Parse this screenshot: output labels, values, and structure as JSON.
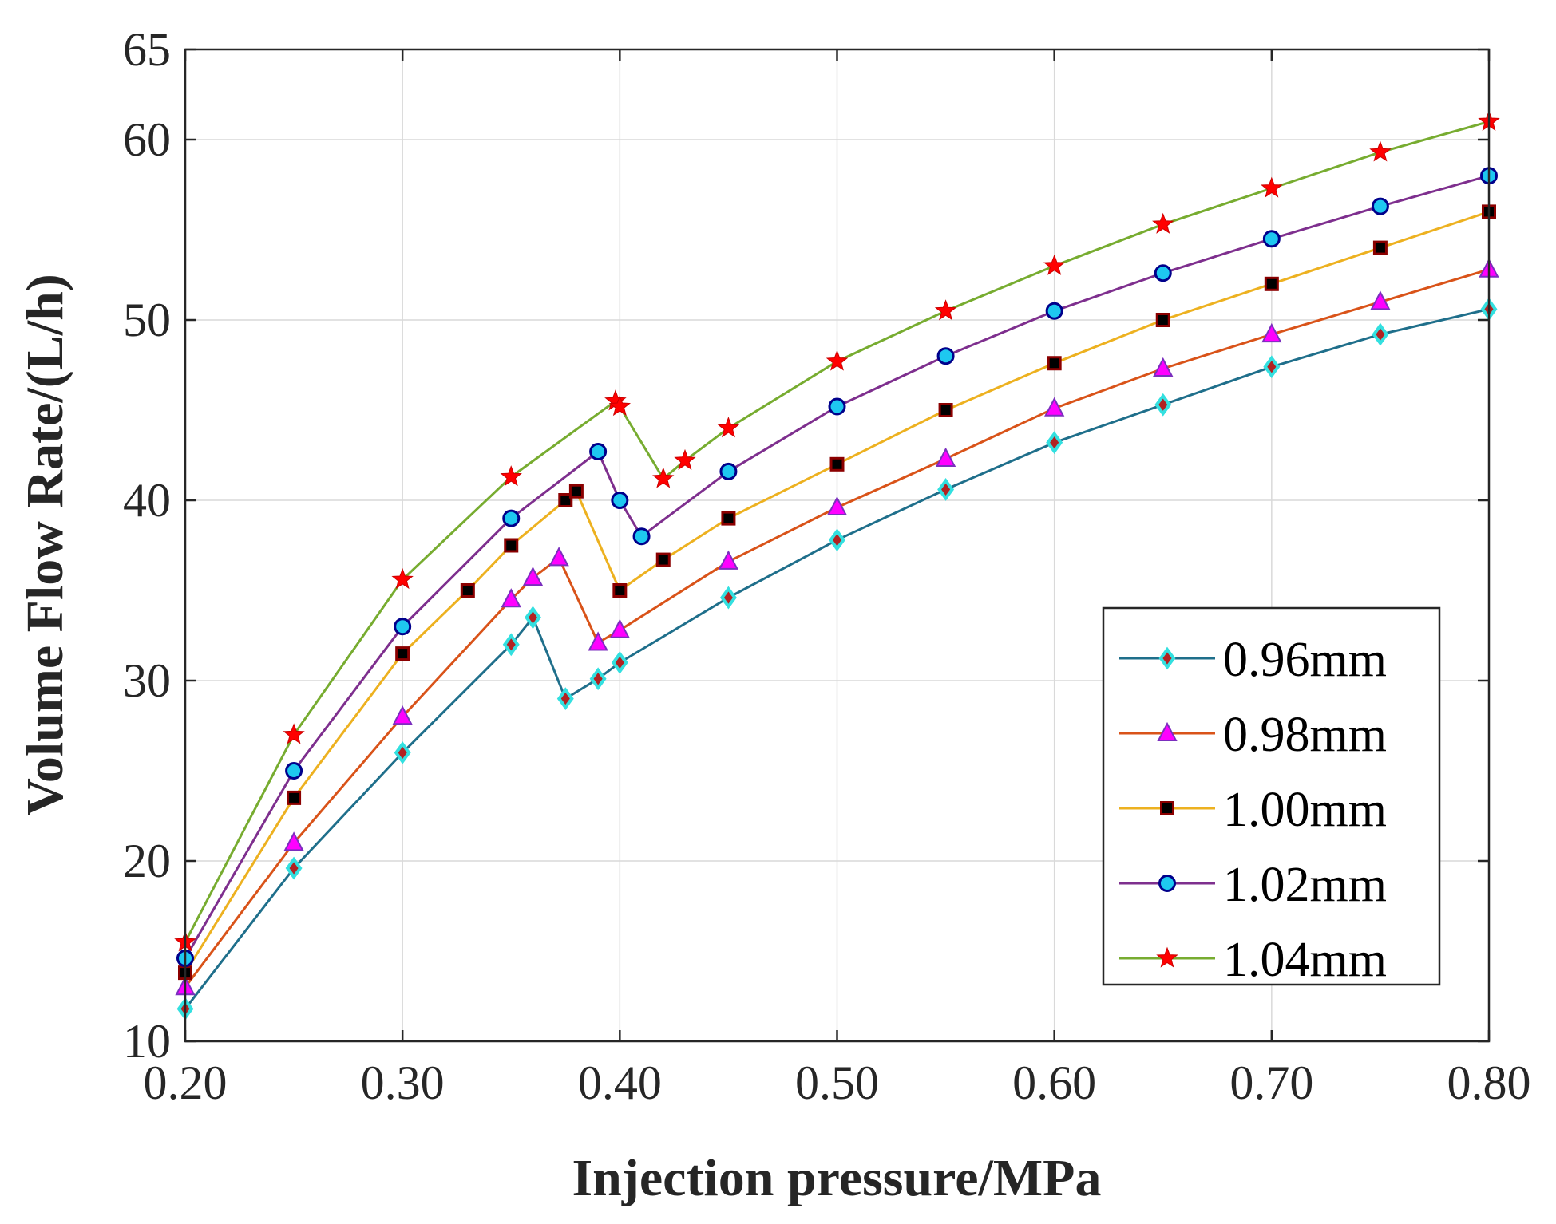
{
  "chart_data": {
    "type": "line",
    "title": "",
    "xlabel": "Injection pressure/MPa",
    "ylabel": "Volume Flow Rate/(L/h)",
    "xlim": [
      0.2,
      0.8
    ],
    "ylim": [
      10,
      65
    ],
    "xticks": [
      0.2,
      0.3,
      0.4,
      0.5,
      0.6,
      0.7,
      0.8
    ],
    "xtick_labels": [
      "0.20",
      "0.30",
      "0.40",
      "0.50",
      "0.60",
      "0.70",
      "0.80"
    ],
    "yticks": [
      10,
      20,
      30,
      40,
      50,
      60,
      65
    ],
    "ytick_labels": [
      "10",
      "20",
      "30",
      "40",
      "50",
      "60",
      "65"
    ],
    "grid": true,
    "legend_position": "bottom-right",
    "series": [
      {
        "name": "0.96mm",
        "color": "#1f6f8b",
        "marker": "diamond",
        "marker_fill": "#b22222",
        "marker_edge": "#33e0e0",
        "x": [
          0.2,
          0.25,
          0.3,
          0.35,
          0.36,
          0.375,
          0.39,
          0.4,
          0.45,
          0.5,
          0.55,
          0.6,
          0.65,
          0.7,
          0.75,
          0.8
        ],
        "y": [
          11.8,
          19.6,
          26.0,
          32.0,
          33.5,
          29.0,
          30.1,
          31.0,
          34.6,
          37.8,
          40.6,
          43.2,
          45.3,
          47.4,
          49.2,
          50.6
        ]
      },
      {
        "name": "0.98mm",
        "color": "#d95319",
        "marker": "triangle",
        "marker_fill": "#ff00ff",
        "marker_edge": "#7b2fbe",
        "x": [
          0.2,
          0.25,
          0.3,
          0.35,
          0.36,
          0.372,
          0.39,
          0.4,
          0.45,
          0.5,
          0.55,
          0.6,
          0.65,
          0.7,
          0.75,
          0.8
        ],
        "y": [
          13.0,
          21.0,
          28.0,
          34.5,
          35.7,
          36.8,
          32.1,
          32.8,
          36.6,
          39.6,
          42.3,
          45.1,
          47.3,
          49.2,
          51.0,
          52.8
        ]
      },
      {
        "name": "1.00mm",
        "color": "#edb120",
        "marker": "square",
        "marker_fill": "#000000",
        "marker_edge": "#8b0000",
        "x": [
          0.2,
          0.25,
          0.3,
          0.33,
          0.35,
          0.375,
          0.38,
          0.4,
          0.42,
          0.45,
          0.5,
          0.55,
          0.6,
          0.65,
          0.7,
          0.75,
          0.8
        ],
        "y": [
          13.8,
          23.5,
          31.5,
          35.0,
          37.5,
          40.0,
          40.5,
          35.0,
          36.7,
          39.0,
          42.0,
          45.0,
          47.6,
          50.0,
          52.0,
          54.0,
          56.0
        ]
      },
      {
        "name": "1.02mm",
        "color": "#7e2f8e",
        "marker": "circle",
        "marker_fill": "#1ec8f0",
        "marker_edge": "#00008b",
        "x": [
          0.2,
          0.25,
          0.3,
          0.35,
          0.39,
          0.4,
          0.41,
          0.45,
          0.5,
          0.55,
          0.6,
          0.65,
          0.7,
          0.75,
          0.8
        ],
        "y": [
          14.6,
          25.0,
          33.0,
          39.0,
          42.7,
          40.0,
          38.0,
          41.6,
          45.2,
          48.0,
          50.5,
          52.6,
          54.5,
          56.3,
          58.0
        ]
      },
      {
        "name": "1.04mm",
        "color": "#77ac30",
        "marker": "star",
        "marker_fill": "#ff0000",
        "marker_edge": "#cc0000",
        "x": [
          0.2,
          0.25,
          0.3,
          0.35,
          0.398,
          0.4,
          0.42,
          0.43,
          0.45,
          0.5,
          0.55,
          0.6,
          0.65,
          0.7,
          0.75,
          0.8
        ],
        "y": [
          15.5,
          27.0,
          35.6,
          41.3,
          45.5,
          45.2,
          41.2,
          42.2,
          44.0,
          47.7,
          50.5,
          53.0,
          55.3,
          57.3,
          59.3,
          61.0
        ]
      }
    ]
  }
}
